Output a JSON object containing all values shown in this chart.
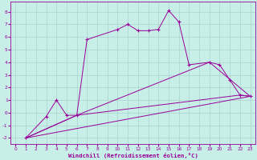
{
  "background_color": "#c8eee8",
  "grid_color": "#a8d4cc",
  "line_color": "#990099",
  "x_label": "Windchill (Refroidissement éolien,°C)",
  "x_ticks": [
    0,
    1,
    2,
    3,
    4,
    5,
    6,
    7,
    8,
    9,
    10,
    11,
    12,
    13,
    14,
    15,
    16,
    17,
    18,
    19,
    20,
    21,
    22,
    23
  ],
  "y_ticks": [
    -2,
    -1,
    0,
    1,
    2,
    3,
    4,
    5,
    6,
    7,
    8
  ],
  "xlim": [
    -0.5,
    23.5
  ],
  "ylim": [
    -2.5,
    8.8
  ],
  "series1_x": [
    1,
    3,
    4,
    5,
    6,
    7,
    10,
    11,
    12,
    13,
    14,
    15,
    16,
    17,
    19,
    20,
    21,
    22,
    23
  ],
  "series1_y": [
    -2.0,
    -0.3,
    1.0,
    -0.2,
    -0.2,
    5.8,
    6.6,
    7.0,
    6.5,
    6.5,
    6.6,
    8.1,
    7.2,
    3.8,
    4.0,
    3.8,
    2.6,
    1.4,
    1.3
  ],
  "series2_x": [
    1,
    6,
    19,
    23
  ],
  "series2_y": [
    -2.0,
    -0.2,
    4.0,
    1.3
  ],
  "series3_x": [
    1,
    6,
    22,
    23
  ],
  "series3_y": [
    -2.0,
    -0.2,
    1.4,
    1.3
  ],
  "series4_x": [
    1,
    23
  ],
  "series4_y": [
    -2.0,
    1.3
  ]
}
